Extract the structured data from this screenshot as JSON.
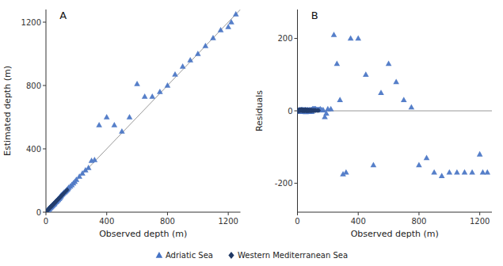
{
  "chart_data": [
    {
      "type": "scatter",
      "title": "A",
      "xlabel": "Observed depth (m)",
      "ylabel": "Estimated depth (m)",
      "xlim": [
        0,
        1280
      ],
      "ylim": [
        0,
        1280
      ],
      "xticks": [
        0,
        400,
        800,
        1200
      ],
      "yticks": [
        0,
        400,
        800,
        1200
      ],
      "grid": false,
      "legend": "bottom",
      "series": [
        {
          "name": "Adriatic Sea",
          "color": "#4472c4",
          "marker": "triangle",
          "x": [
            5,
            8,
            10,
            12,
            15,
            18,
            20,
            22,
            25,
            28,
            30,
            32,
            35,
            38,
            40,
            43,
            45,
            48,
            50,
            52,
            55,
            58,
            60,
            63,
            65,
            68,
            70,
            72,
            75,
            78,
            80,
            83,
            85,
            88,
            90,
            93,
            95,
            98,
            100,
            105,
            110,
            115,
            120,
            125,
            130,
            135,
            140,
            145,
            150,
            160,
            170,
            180,
            190,
            200,
            220,
            240,
            260,
            280,
            300,
            320,
            350,
            400,
            450,
            500,
            550,
            600,
            650,
            700,
            750,
            800,
            850,
            900,
            950,
            1000,
            1050,
            1100,
            1150,
            1200,
            1220,
            1250
          ],
          "values": [
            5,
            9,
            8,
            15,
            14,
            20,
            21,
            20,
            26,
            30,
            28,
            35,
            33,
            40,
            38,
            45,
            43,
            50,
            48,
            54,
            52,
            58,
            62,
            65,
            65,
            70,
            68,
            73,
            76,
            80,
            78,
            85,
            85,
            88,
            92,
            96,
            97,
            102,
            105,
            110,
            115,
            120,
            125,
            128,
            133,
            138,
            143,
            148,
            155,
            163,
            172,
            183,
            193,
            205,
            225,
            245,
            265,
            280,
            325,
            330,
            550,
            600,
            550,
            510,
            600,
            810,
            730,
            730,
            760,
            800,
            870,
            920,
            960,
            1000,
            1050,
            1100,
            1150,
            1170,
            1200,
            1250
          ]
        },
        {
          "name": "Western Mediterranean Sea",
          "color": "#1f3864",
          "marker": "diamond",
          "x": [
            3,
            5,
            7,
            8,
            10,
            12,
            15,
            17,
            18,
            20,
            22,
            23,
            25,
            27,
            28,
            30,
            32,
            33,
            35,
            37,
            38,
            40,
            42,
            43,
            45,
            47,
            48,
            50,
            52,
            53,
            55,
            57,
            58,
            60,
            62,
            63,
            65,
            67,
            68,
            70,
            72,
            73,
            75,
            78,
            80,
            83,
            85,
            88,
            90,
            93,
            95,
            100,
            105,
            110,
            115,
            120,
            130,
            140
          ],
          "values": [
            3,
            6,
            8,
            9,
            11,
            14,
            16,
            18,
            20,
            22,
            24,
            26,
            27,
            29,
            31,
            31,
            33,
            35,
            36,
            38,
            40,
            41,
            43,
            45,
            46,
            48,
            49,
            51,
            53,
            55,
            56,
            58,
            59,
            61,
            63,
            64,
            66,
            68,
            69,
            71,
            73,
            74,
            76,
            79,
            81,
            84,
            86,
            89,
            91,
            94,
            96,
            101,
            106,
            111,
            116,
            121,
            131,
            141
          ]
        }
      ]
    },
    {
      "type": "scatter",
      "title": "B",
      "xlabel": "Observed depth (m)",
      "ylabel": "Residuals",
      "xlim": [
        0,
        1280
      ],
      "ylim": [
        -280,
        280
      ],
      "xticks": [
        0,
        400,
        800,
        1200
      ],
      "yticks": [
        -200,
        0,
        200
      ],
      "grid": false,
      "series": [
        {
          "color": "#4472c4",
          "marker": "triangle",
          "x": [
            5,
            8,
            10,
            12,
            15,
            18,
            20,
            22,
            25,
            28,
            30,
            32,
            35,
            38,
            40,
            43,
            45,
            48,
            50,
            52,
            55,
            58,
            60,
            63,
            65,
            68,
            70,
            72,
            75,
            78,
            80,
            83,
            85,
            88,
            90,
            93,
            95,
            98,
            100,
            105,
            110,
            115,
            120,
            125,
            130,
            135,
            140,
            145,
            150,
            160,
            170,
            180,
            190,
            200,
            220,
            240,
            260,
            280,
            300,
            320,
            350,
            400,
            450,
            500,
            550,
            600,
            650,
            700,
            750,
            800,
            850,
            900,
            950,
            1000,
            1050,
            1100,
            1150,
            1200,
            1220,
            1250
          ],
          "values": [
            0,
            1,
            -2,
            3,
            -1,
            2,
            1,
            -2,
            1,
            2,
            -2,
            3,
            -2,
            2,
            -2,
            2,
            -2,
            2,
            -2,
            2,
            -3,
            0,
            2,
            2,
            0,
            2,
            -2,
            1,
            1,
            2,
            -2,
            2,
            0,
            -2,
            2,
            3,
            -2,
            4,
            5,
            5,
            5,
            5,
            5,
            3,
            3,
            3,
            3,
            3,
            5,
            3,
            2,
            -17,
            -7,
            5,
            5,
            210,
            130,
            30,
            -175,
            -170,
            200,
            200,
            100,
            -150,
            50,
            130,
            80,
            30,
            10,
            -150,
            -130,
            -170,
            -180,
            -170,
            -170,
            -170,
            -170,
            -120,
            -170,
            -170
          ]
        },
        {
          "color": "#1f3864",
          "marker": "diamond",
          "x": [
            3,
            5,
            7,
            8,
            10,
            12,
            15,
            17,
            18,
            20,
            22,
            23,
            25,
            27,
            28,
            30,
            32,
            33,
            35,
            37,
            38,
            40,
            42,
            43,
            45,
            47,
            48,
            50,
            52,
            53,
            55,
            57,
            58,
            60,
            62,
            63,
            65,
            67,
            68,
            70,
            72,
            73,
            75,
            78,
            80,
            83,
            85,
            88,
            90,
            93,
            95,
            100,
            105,
            110,
            115,
            120,
            130,
            140
          ],
          "values": [
            0,
            -1,
            1,
            1,
            1,
            2,
            1,
            1,
            2,
            2,
            2,
            3,
            2,
            2,
            3,
            1,
            1,
            2,
            1,
            1,
            2,
            1,
            1,
            2,
            1,
            1,
            1,
            1,
            3,
            2,
            1,
            1,
            1,
            1,
            1,
            1,
            1,
            1,
            1,
            1,
            1,
            1,
            1,
            1,
            1,
            1,
            1,
            1,
            1,
            1,
            1,
            1,
            1,
            1,
            1,
            1,
            1,
            1
          ]
        }
      ]
    }
  ]
}
